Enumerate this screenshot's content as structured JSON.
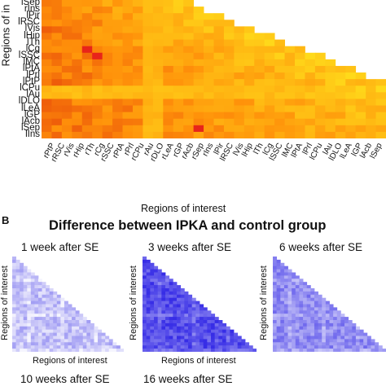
{
  "panel_a": {
    "y_axis_title": "Regions of in",
    "x_axis_title": "Regions of interest",
    "y_labels": [
      "lSep",
      "rIns",
      "lPir",
      "lRSC",
      "lVis",
      "lHip",
      "lTh",
      "lCg",
      "lSSC",
      "lMC",
      "lPtA",
      "lPrl",
      "lPtP",
      "lCPu",
      "lAu",
      "lDLO",
      "lLeA",
      "lGP",
      "lAcb",
      "lSep",
      "lIns"
    ],
    "x_labels": [
      "rPtP",
      "rRSC",
      "rVis",
      "rHip",
      "rTh",
      "rCg",
      "rSSC",
      "rPtA",
      "rPrl",
      "rCPu",
      "rAu",
      "rDLO",
      "rLeA",
      "rGP",
      "rAcb",
      "rSep",
      "rIns",
      "lPir",
      "lRSC",
      "lVis",
      "lHip",
      "lTh",
      "lCg",
      "lSSC",
      "lMC",
      "lPtA",
      "lPrl",
      "lCPu",
      "lAu",
      "lDLO",
      "lLeA",
      "lGP",
      "lAcb",
      "lSep"
    ]
  },
  "panel_b": {
    "letter": "B",
    "title": "Difference between IPKA and control group",
    "subplots": [
      {
        "title": "1 week after SE",
        "ylabel": "Regions of interest",
        "xlabel": "Regions of interest",
        "intensity": 0.3
      },
      {
        "title": "3 weeks after SE",
        "ylabel": "Regions of interest",
        "xlabel": "Regions of interest",
        "intensity": 0.85
      },
      {
        "title": "6 weeks after SE",
        "ylabel": "Regions of interest",
        "xlabel": "",
        "intensity": 0.55
      }
    ],
    "bottom_titles": [
      "10 weeks after SE",
      "16 weeks after SE"
    ]
  },
  "chart_data": [
    {
      "type": "heatmap",
      "title": "",
      "xlabel": "Regions of interest",
      "ylabel": "Regions of in",
      "colormap": "yellow-orange-red",
      "triangle": "lower-left",
      "hotspots": [
        {
          "row": "lCg",
          "col": "rTh",
          "level": "high"
        },
        {
          "row": "lSSC",
          "col": "rCg",
          "level": "high"
        },
        {
          "row": "lSep",
          "col": "rSep",
          "level": "high"
        }
      ]
    },
    {
      "type": "heatmap",
      "title": "1 week after SE",
      "xlabel": "Regions of interest",
      "ylabel": "Regions of interest",
      "colormap": "white-blue",
      "triangle": "lower-left"
    },
    {
      "type": "heatmap",
      "title": "3 weeks after SE",
      "xlabel": "Regions of interest",
      "ylabel": "Regions of interest",
      "colormap": "white-blue",
      "triangle": "lower-left"
    },
    {
      "type": "heatmap",
      "title": "6 weeks after SE",
      "xlabel": "",
      "ylabel": "Regions of interest",
      "colormap": "white-blue",
      "triangle": "lower-left"
    }
  ]
}
